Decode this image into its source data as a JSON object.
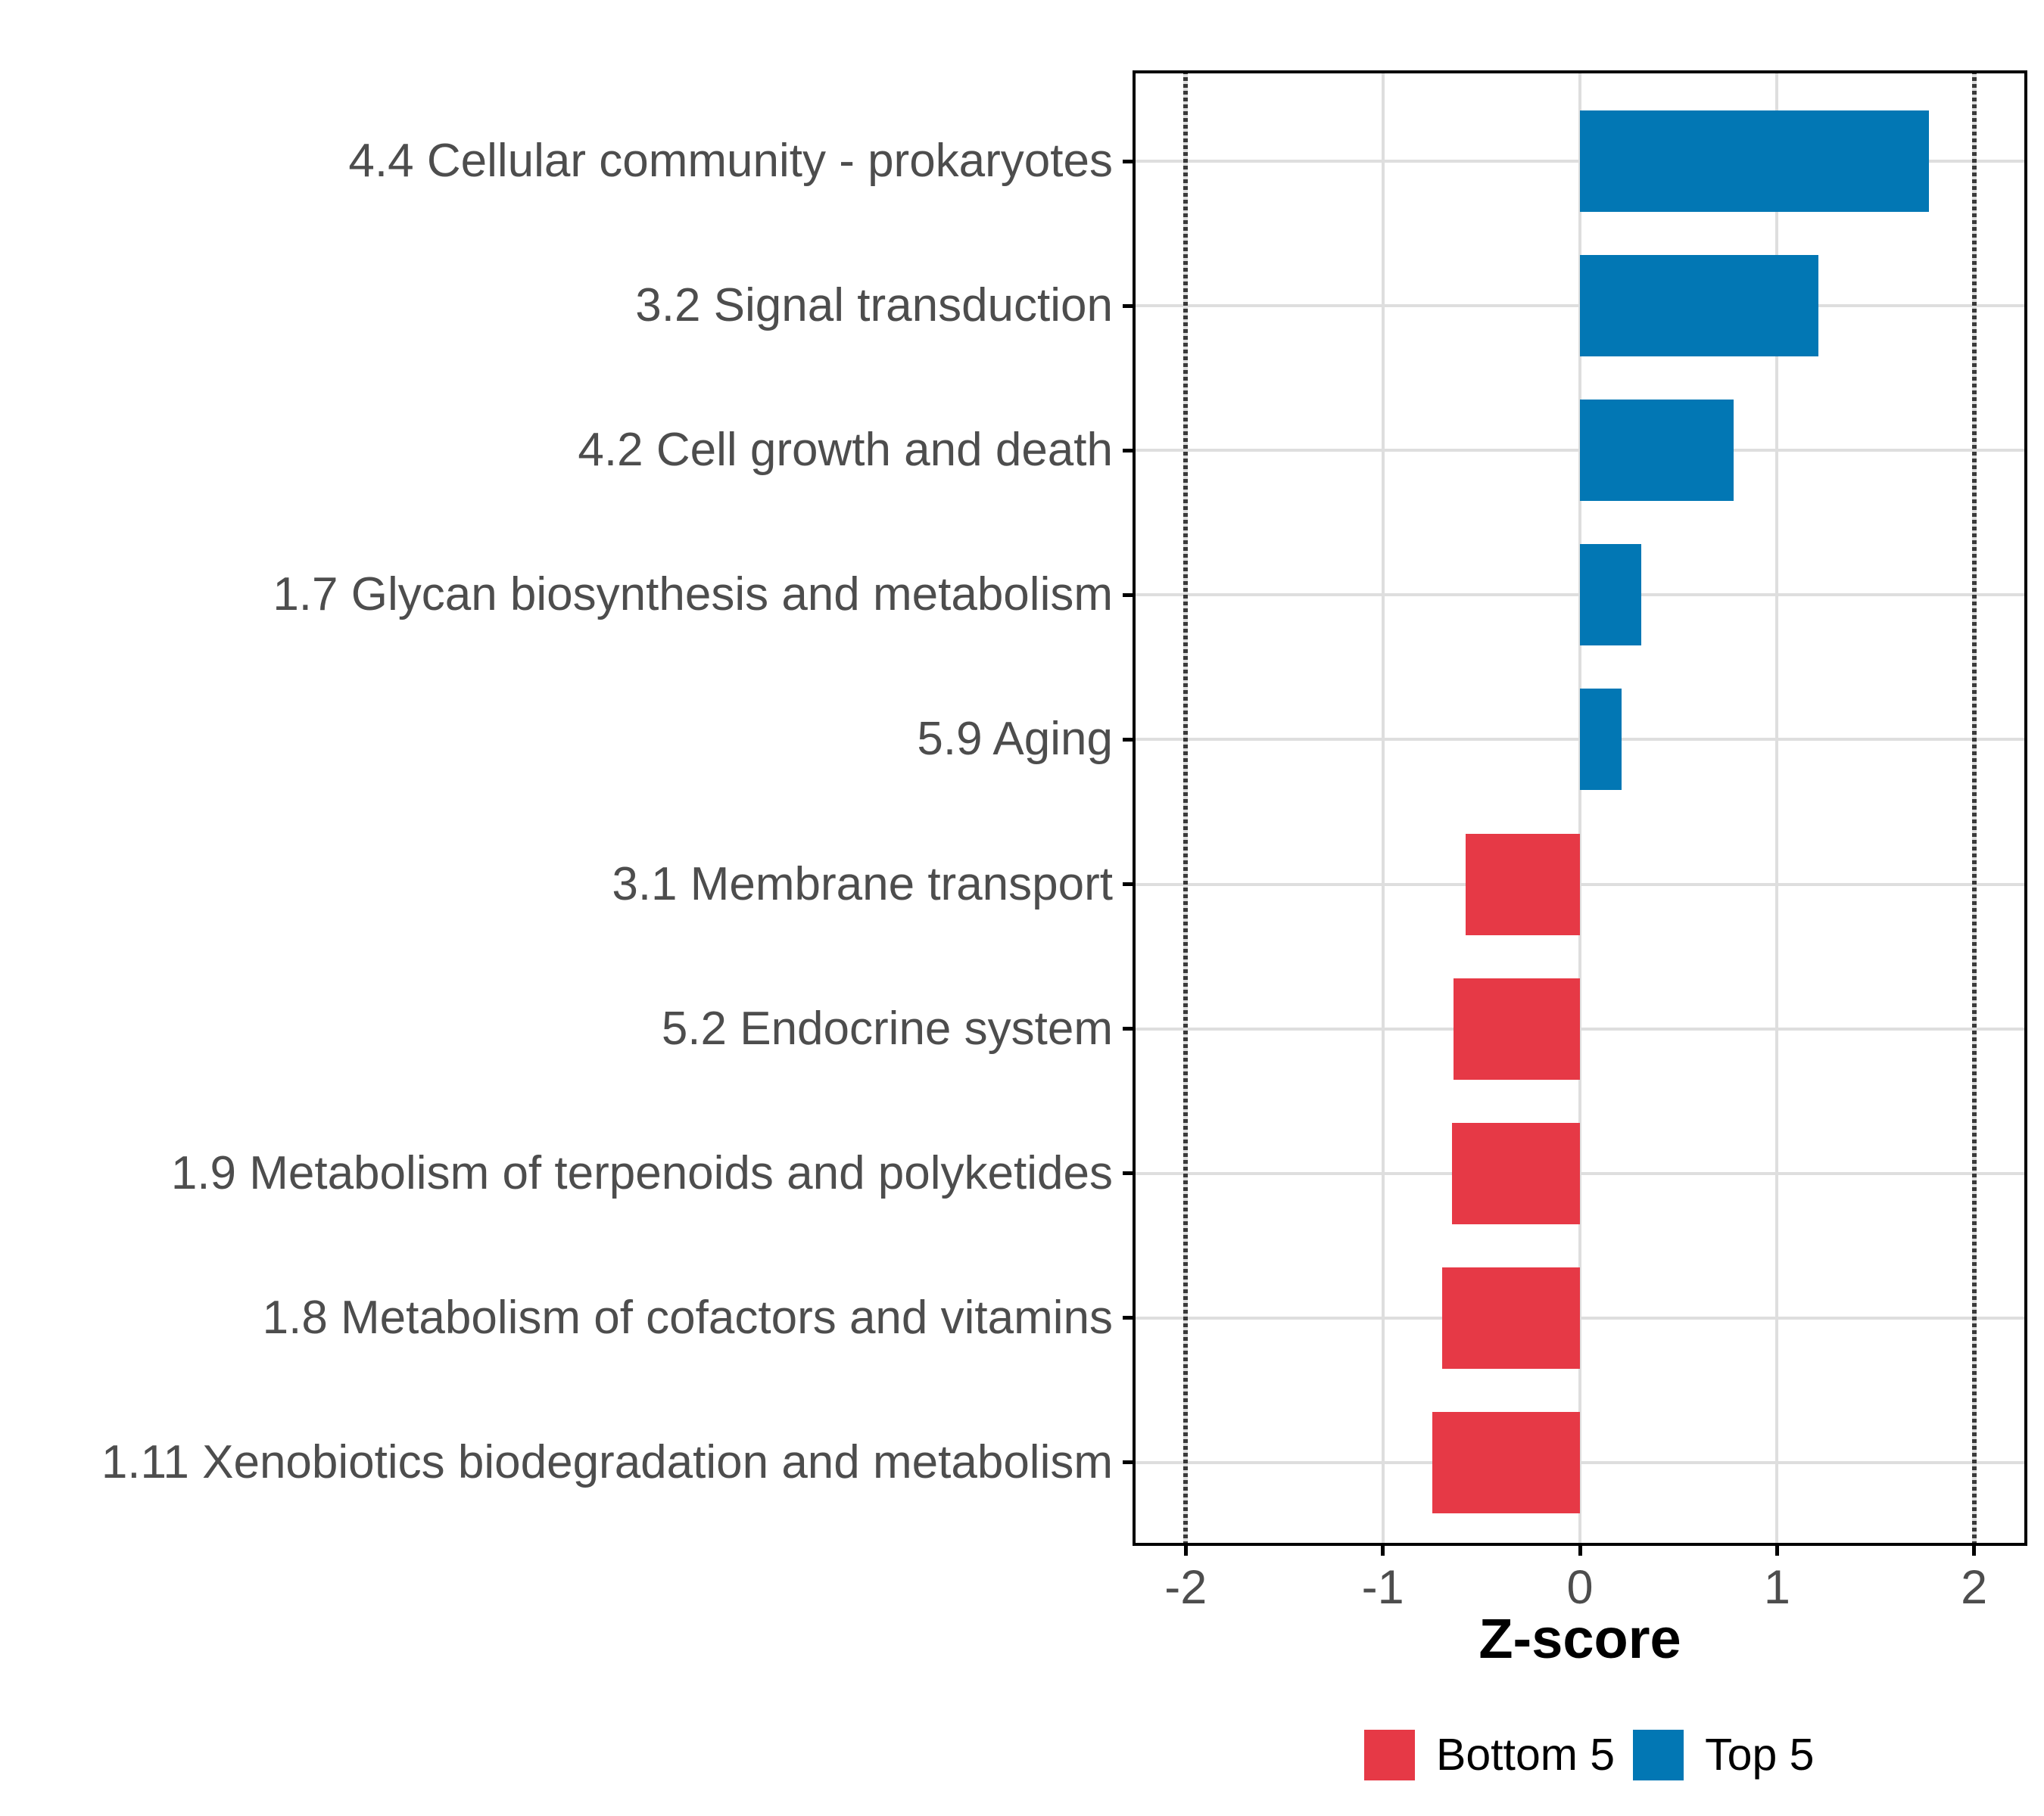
{
  "chart_data": {
    "type": "bar",
    "orientation": "horizontal",
    "title": "",
    "xlabel": "Z-score",
    "ylabel": "",
    "xlim": [
      -2.27,
      2.27
    ],
    "x_ticks": [
      {
        "value": -2,
        "label": "-2"
      },
      {
        "value": -1,
        "label": "-1"
      },
      {
        "value": 0,
        "label": "0"
      },
      {
        "value": 1,
        "label": "1"
      },
      {
        "value": 2,
        "label": "2"
      }
    ],
    "reference_lines": [
      -2,
      2
    ],
    "grid": true,
    "legend_position": "bottom",
    "bars": [
      {
        "label": "4.4 Cellular community - prokaryotes",
        "value": 1.77,
        "group": "Top 5"
      },
      {
        "label": "3.2 Signal transduction",
        "value": 1.21,
        "group": "Top 5"
      },
      {
        "label": "4.2 Cell growth and death",
        "value": 0.78,
        "group": "Top 5"
      },
      {
        "label": "1.7 Glycan biosynthesis and metabolism",
        "value": 0.31,
        "group": "Top 5"
      },
      {
        "label": "5.9 Aging",
        "value": 0.21,
        "group": "Top 5"
      },
      {
        "label": "3.1 Membrane transport",
        "value": -0.58,
        "group": "Bottom 5"
      },
      {
        "label": "5.2 Endocrine system",
        "value": -0.64,
        "group": "Bottom 5"
      },
      {
        "label": "1.9 Metabolism of terpenoids and polyketides",
        "value": -0.65,
        "group": "Bottom 5"
      },
      {
        "label": "1.8 Metabolism of cofactors and vitamins",
        "value": -0.7,
        "group": "Bottom 5"
      },
      {
        "label": "1.11 Xenobiotics biodegradation and metabolism",
        "value": -0.75,
        "group": "Bottom 5"
      }
    ],
    "legend": [
      {
        "label": "Bottom 5",
        "color": "#E63946"
      },
      {
        "label": "Top 5",
        "color": "#0277B4"
      }
    ],
    "colors": {
      "Top 5": "#0277B4",
      "Bottom 5": "#E63946",
      "gridline": "#DEDEDE",
      "reference_line": "#3A3A3A",
      "axis_text": "#4D4D4D",
      "axis_title": "#000000",
      "panel_border": "#000000",
      "background": "#FFFFFF"
    }
  }
}
